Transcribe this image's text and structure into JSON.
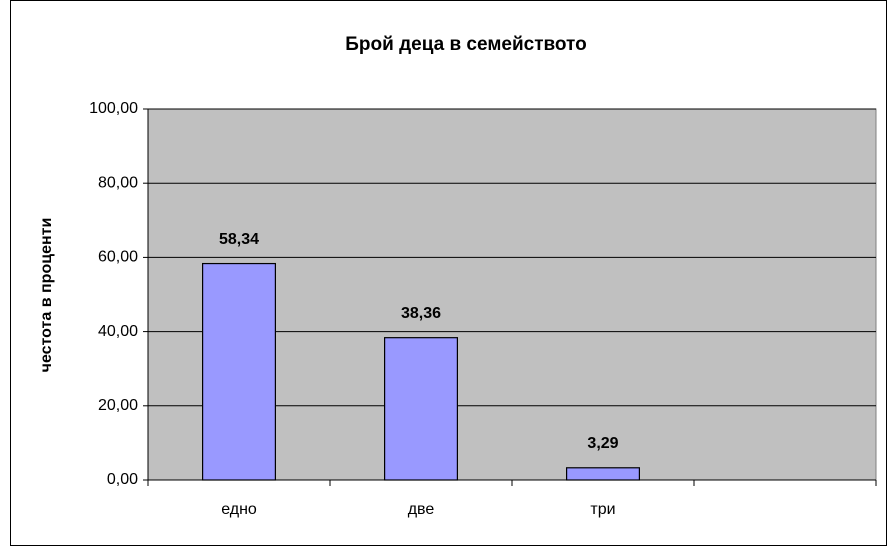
{
  "chart_data": {
    "type": "bar",
    "title": "Брой деца в семейството",
    "y_label": "честота в проценти",
    "categories": [
      "едно",
      "две",
      "три",
      null
    ],
    "values": [
      58.34,
      38.36,
      3.29,
      null
    ],
    "value_labels": [
      "58,34",
      "38,36",
      "3,29",
      null
    ],
    "color": "#9999ff",
    "ylim": [
      0,
      100
    ],
    "yticks": [
      {
        "value": 0,
        "label": "0,00"
      },
      {
        "value": 20,
        "label": "20,00"
      },
      {
        "value": 40,
        "label": "40,00"
      },
      {
        "value": 60,
        "label": "60,00"
      },
      {
        "value": 80,
        "label": "80,00"
      },
      {
        "value": 100,
        "label": "100,00"
      }
    ],
    "grid": true
  }
}
